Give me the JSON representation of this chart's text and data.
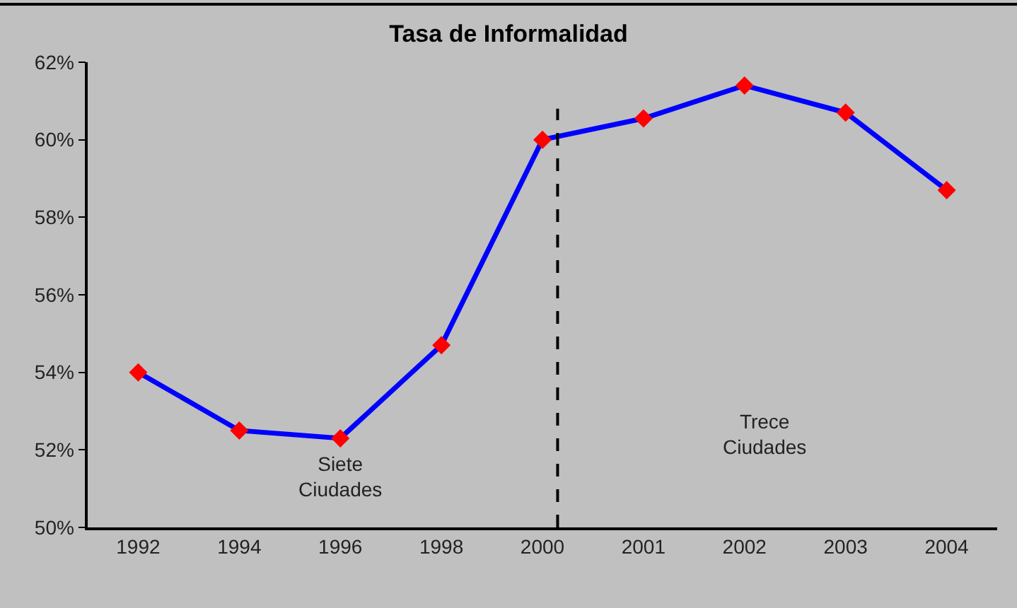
{
  "chart_data": {
    "type": "line",
    "title": "Tasa de Informalidad",
    "categories": [
      "1992",
      "1994",
      "1996",
      "1998",
      "2000",
      "2001",
      "2002",
      "2003",
      "2004"
    ],
    "series": [
      {
        "color": "#0000ff",
        "colors": [
          "#ff0000",
          "#ff0000",
          "#ff0000",
          "#ff0000",
          "#ff0000",
          "#ff0000",
          "#ff0000",
          "#ff0000",
          "#ff0000"
        ],
        "values": [
          54.0,
          52.5,
          52.3,
          54.7,
          60.0,
          60.55,
          61.4,
          60.7,
          58.7
        ]
      }
    ],
    "ylim": [
      50,
      62
    ],
    "yticks": [
      {
        "value": 50,
        "label": "50%"
      },
      {
        "value": 52,
        "label": "52%"
      },
      {
        "value": 54,
        "label": "54%"
      },
      {
        "value": 56,
        "label": "56%"
      },
      {
        "value": 58,
        "label": "58%"
      },
      {
        "value": 60,
        "label": "60%"
      },
      {
        "value": 62,
        "label": "62%"
      }
    ],
    "ref_lines": [
      {
        "axis": "x",
        "value": "2000",
        "color": "#000000",
        "line_style": "dashed"
      }
    ],
    "annotations": [
      "Siete Ciudades",
      "Trece Ciudades"
    ],
    "marker": "diamond",
    "line_style": "solid"
  }
}
